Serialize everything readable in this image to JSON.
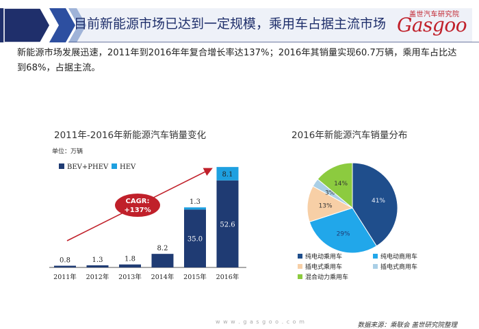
{
  "header": {
    "title": "目前新能源市场已达到一定规模，乘用车占据主流市场",
    "logo_top": "盖世汽车研究院",
    "logo_word": "Gasgoo"
  },
  "summary": "新能源市场发展迅速，2011年到2016年年复合增长率达137%；2016年其销量实现60.7万辆，乘用车占比达到68%，占据主流。",
  "colors": {
    "banner_dark": "#1f2f6b",
    "bev": "#1f3b73",
    "hev": "#1ea0e0",
    "cagr": "#c0202a",
    "arrow": "#c0202a"
  },
  "chart_data": [
    {
      "type": "bar",
      "stacked": true,
      "title": "2011年-2016年新能源汽车销量变化",
      "unit": "单位：万辆",
      "categories": [
        "2011年",
        "2012年",
        "2013年",
        "2014年",
        "2015年",
        "2016年"
      ],
      "series": [
        {
          "name": "BEV+PHEV",
          "values": [
            0.8,
            1.3,
            1.8,
            8.2,
            35.0,
            52.6
          ],
          "labels": [
            "0.8",
            "1.3",
            "1.8",
            "8.2",
            "35.0",
            "52.6"
          ],
          "color": "#1f3b73"
        },
        {
          "name": "HEV",
          "values": [
            0,
            0,
            0,
            0,
            1.3,
            8.1
          ],
          "labels": [
            "",
            "",
            "",
            "",
            "1.3",
            "8.1"
          ],
          "color": "#1ea0e0"
        }
      ],
      "ylim": [
        0,
        62
      ],
      "annotation": {
        "text": "CAGR:",
        "value": "+137%"
      }
    },
    {
      "type": "pie",
      "title": "2016年新能源汽车销量分布",
      "slices": [
        {
          "name": "纯电动乘用车",
          "value": 41,
          "label": "41%",
          "color": "#1f4e8c"
        },
        {
          "name": "纯电动商用车",
          "value": 29,
          "label": "29%",
          "color": "#21a7ea"
        },
        {
          "name": "插电式乘用车",
          "value": 13,
          "label": "13%",
          "color": "#f7cfa6"
        },
        {
          "name": "插电式商用车",
          "value": 3,
          "label": "3%",
          "color": "#aacfe6"
        },
        {
          "name": "混合动力乘用车",
          "value": 14,
          "label": "14%",
          "color": "#8ccb3f"
        }
      ]
    }
  ],
  "footer": {
    "url": "w w w . g a s g o o . c o m",
    "source": "数据来源：乘联会 盖世研究院整理"
  }
}
